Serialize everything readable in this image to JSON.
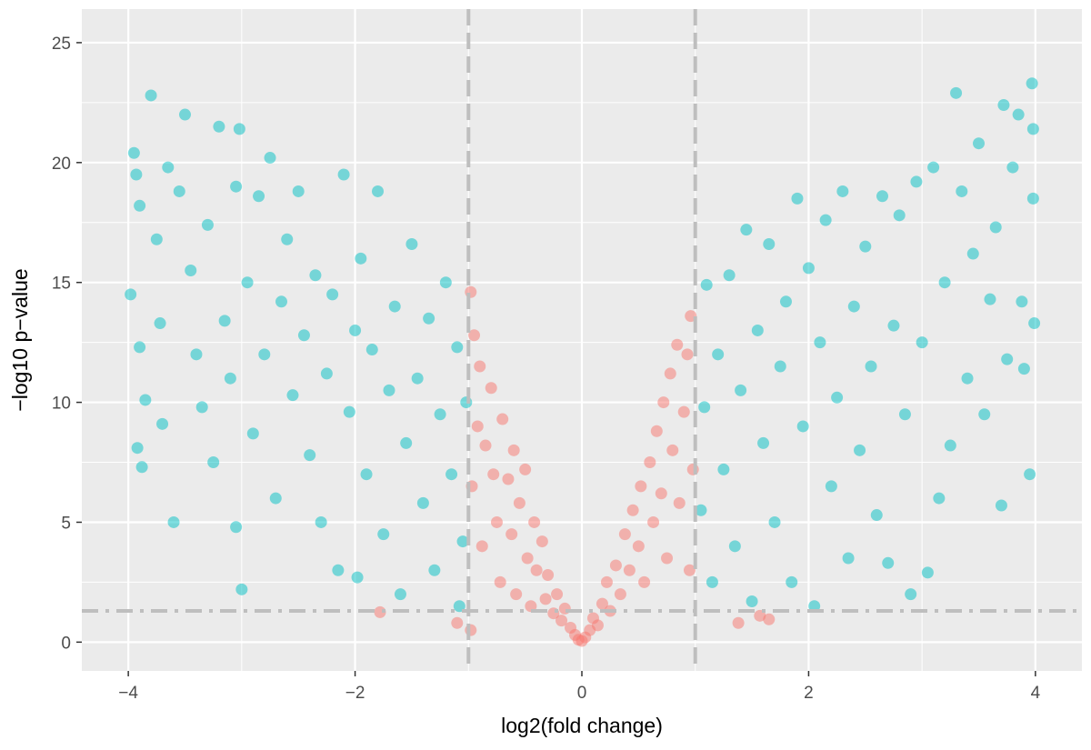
{
  "chart_data": {
    "type": "scatter",
    "title": "",
    "xlabel": "log2(fold change)",
    "ylabel": "−log10 p−value",
    "xlim": [
      -4.41,
      4.41
    ],
    "ylim": [
      -1.2,
      26.4
    ],
    "x_ticks": [
      "−4",
      "−2",
      "0",
      "2",
      "4"
    ],
    "x_tick_values": [
      -4,
      -2,
      0,
      2,
      4
    ],
    "y_ticks": [
      "0",
      "5",
      "10",
      "15",
      "20",
      "25"
    ],
    "y_tick_values": [
      0,
      5,
      10,
      15,
      20,
      25
    ],
    "grid": true,
    "legend": "none",
    "thresholds": {
      "vertical": [
        -1,
        1
      ],
      "horizontal": 1.3
    },
    "colors": {
      "significant": "#00BFC4",
      "not_significant": "#F8766D",
      "panel": "#EBEBEB",
      "grid": "#FFFFFF",
      "threshold": "#BEBEBE"
    },
    "point_alpha": 0.5,
    "series": [
      {
        "group": "not_significant",
        "color": "#F8766D",
        "points": [
          [
            -0.98,
            14.6
          ],
          [
            -0.95,
            12.8
          ],
          [
            -0.9,
            11.5
          ],
          [
            -0.92,
            9.0
          ],
          [
            -0.97,
            6.5
          ],
          [
            -0.88,
            4.0
          ],
          [
            -0.85,
            8.2
          ],
          [
            -0.8,
            10.6
          ],
          [
            -0.78,
            7.0
          ],
          [
            -0.75,
            5.0
          ],
          [
            -0.72,
            2.5
          ],
          [
            -0.7,
            9.3
          ],
          [
            -0.65,
            6.8
          ],
          [
            -0.62,
            4.5
          ],
          [
            -0.6,
            8.0
          ],
          [
            -0.58,
            2.0
          ],
          [
            -0.55,
            5.8
          ],
          [
            -0.5,
            7.2
          ],
          [
            -0.48,
            3.5
          ],
          [
            -0.45,
            1.5
          ],
          [
            -0.42,
            5.0
          ],
          [
            -0.4,
            3.0
          ],
          [
            -0.35,
            4.2
          ],
          [
            -0.32,
            1.8
          ],
          [
            -0.3,
            2.8
          ],
          [
            -0.25,
            1.2
          ],
          [
            -0.22,
            2.0
          ],
          [
            -0.18,
            0.9
          ],
          [
            -0.15,
            1.4
          ],
          [
            -0.1,
            0.6
          ],
          [
            -0.06,
            0.3
          ],
          [
            -0.03,
            0.1
          ],
          [
            0.0,
            0.05
          ],
          [
            0.03,
            0.2
          ],
          [
            0.07,
            0.5
          ],
          [
            0.1,
            1.0
          ],
          [
            0.14,
            0.7
          ],
          [
            0.18,
            1.6
          ],
          [
            0.22,
            2.5
          ],
          [
            0.25,
            1.3
          ],
          [
            0.3,
            3.2
          ],
          [
            0.34,
            2.0
          ],
          [
            0.38,
            4.5
          ],
          [
            0.42,
            3.0
          ],
          [
            0.45,
            5.5
          ],
          [
            0.5,
            4.0
          ],
          [
            0.52,
            6.5
          ],
          [
            0.55,
            2.5
          ],
          [
            0.6,
            7.5
          ],
          [
            0.63,
            5.0
          ],
          [
            0.66,
            8.8
          ],
          [
            0.7,
            6.2
          ],
          [
            0.72,
            10.0
          ],
          [
            0.75,
            3.5
          ],
          [
            0.78,
            11.2
          ],
          [
            0.8,
            8.0
          ],
          [
            0.84,
            12.4
          ],
          [
            0.86,
            5.8
          ],
          [
            0.9,
            9.6
          ],
          [
            0.93,
            12.0
          ],
          [
            0.96,
            13.6
          ],
          [
            0.98,
            7.2
          ],
          [
            0.95,
            3.0
          ],
          [
            -1.78,
            1.25
          ],
          [
            -1.1,
            0.8
          ],
          [
            -0.98,
            0.5
          ],
          [
            1.38,
            0.8
          ],
          [
            1.57,
            1.1
          ],
          [
            1.65,
            0.95
          ]
        ]
      },
      {
        "group": "significant",
        "color": "#00BFC4",
        "points": [
          [
            -3.95,
            20.4
          ],
          [
            -3.93,
            19.5
          ],
          [
            -3.9,
            18.2
          ],
          [
            -3.98,
            14.5
          ],
          [
            -3.9,
            12.3
          ],
          [
            -3.92,
            8.1
          ],
          [
            -3.88,
            7.3
          ],
          [
            -3.8,
            22.8
          ],
          [
            -3.75,
            16.8
          ],
          [
            -3.72,
            13.3
          ],
          [
            -3.7,
            9.1
          ],
          [
            -3.85,
            10.1
          ],
          [
            -3.65,
            19.8
          ],
          [
            -3.6,
            5.0
          ],
          [
            -3.55,
            18.8
          ],
          [
            -3.5,
            22.0
          ],
          [
            -3.45,
            15.5
          ],
          [
            -3.4,
            12.0
          ],
          [
            -3.35,
            9.8
          ],
          [
            -3.3,
            17.4
          ],
          [
            -3.25,
            7.5
          ],
          [
            -3.2,
            21.5
          ],
          [
            -3.15,
            13.4
          ],
          [
            -3.1,
            11.0
          ],
          [
            -3.05,
            19.0
          ],
          [
            -3.02,
            21.4
          ],
          [
            -3.0,
            2.2
          ],
          [
            -3.05,
            4.8
          ],
          [
            -2.95,
            15.0
          ],
          [
            -2.9,
            8.7
          ],
          [
            -2.85,
            18.6
          ],
          [
            -2.8,
            12.0
          ],
          [
            -2.75,
            20.2
          ],
          [
            -2.7,
            6.0
          ],
          [
            -2.65,
            14.2
          ],
          [
            -2.6,
            16.8
          ],
          [
            -2.55,
            10.3
          ],
          [
            -2.5,
            18.8
          ],
          [
            -2.45,
            12.8
          ],
          [
            -2.4,
            7.8
          ],
          [
            -2.35,
            15.3
          ],
          [
            -2.3,
            5.0
          ],
          [
            -2.25,
            11.2
          ],
          [
            -2.2,
            14.5
          ],
          [
            -2.15,
            3.0
          ],
          [
            -2.1,
            19.5
          ],
          [
            -2.05,
            9.6
          ],
          [
            -2.0,
            13.0
          ],
          [
            -1.98,
            2.7
          ],
          [
            -1.95,
            16.0
          ],
          [
            -1.9,
            7.0
          ],
          [
            -1.85,
            12.2
          ],
          [
            -1.8,
            18.8
          ],
          [
            -1.75,
            4.5
          ],
          [
            -1.7,
            10.5
          ],
          [
            -1.65,
            14.0
          ],
          [
            -1.6,
            2.0
          ],
          [
            -1.55,
            8.3
          ],
          [
            -1.5,
            16.6
          ],
          [
            -1.45,
            11.0
          ],
          [
            -1.4,
            5.8
          ],
          [
            -1.35,
            13.5
          ],
          [
            -1.3,
            3.0
          ],
          [
            -1.25,
            9.5
          ],
          [
            -1.2,
            15.0
          ],
          [
            -1.15,
            7.0
          ],
          [
            -1.1,
            12.3
          ],
          [
            -1.05,
            4.2
          ],
          [
            -1.02,
            10.0
          ],
          [
            -1.08,
            1.5
          ],
          [
            1.05,
            5.5
          ],
          [
            1.08,
            9.8
          ],
          [
            1.1,
            14.9
          ],
          [
            1.15,
            2.5
          ],
          [
            1.2,
            12.0
          ],
          [
            1.25,
            7.2
          ],
          [
            1.3,
            15.3
          ],
          [
            1.35,
            4.0
          ],
          [
            1.4,
            10.5
          ],
          [
            1.45,
            17.2
          ],
          [
            1.5,
            1.7
          ],
          [
            1.55,
            13.0
          ],
          [
            1.6,
            8.3
          ],
          [
            1.65,
            16.6
          ],
          [
            1.7,
            5.0
          ],
          [
            1.75,
            11.5
          ],
          [
            1.8,
            14.2
          ],
          [
            1.85,
            2.5
          ],
          [
            1.9,
            18.5
          ],
          [
            1.95,
            9.0
          ],
          [
            2.0,
            15.6
          ],
          [
            2.05,
            1.5
          ],
          [
            2.1,
            12.5
          ],
          [
            2.15,
            17.6
          ],
          [
            2.2,
            6.5
          ],
          [
            2.25,
            10.2
          ],
          [
            2.3,
            18.8
          ],
          [
            2.35,
            3.5
          ],
          [
            2.4,
            14.0
          ],
          [
            2.45,
            8.0
          ],
          [
            2.5,
            16.5
          ],
          [
            2.55,
            11.5
          ],
          [
            2.6,
            5.3
          ],
          [
            2.65,
            18.6
          ],
          [
            2.7,
            3.3
          ],
          [
            2.75,
            13.2
          ],
          [
            2.8,
            17.8
          ],
          [
            2.85,
            9.5
          ],
          [
            2.9,
            2.0
          ],
          [
            2.95,
            19.2
          ],
          [
            3.0,
            12.5
          ],
          [
            3.05,
            2.9
          ],
          [
            3.1,
            19.8
          ],
          [
            3.15,
            6.0
          ],
          [
            3.2,
            15.0
          ],
          [
            3.25,
            8.2
          ],
          [
            3.3,
            22.9
          ],
          [
            3.35,
            18.8
          ],
          [
            3.4,
            11.0
          ],
          [
            3.45,
            16.2
          ],
          [
            3.5,
            20.8
          ],
          [
            3.55,
            9.5
          ],
          [
            3.6,
            14.3
          ],
          [
            3.65,
            17.3
          ],
          [
            3.7,
            5.7
          ],
          [
            3.72,
            22.4
          ],
          [
            3.75,
            11.8
          ],
          [
            3.8,
            19.8
          ],
          [
            3.85,
            22.0
          ],
          [
            3.88,
            14.2
          ],
          [
            3.9,
            11.4
          ],
          [
            3.95,
            7.0
          ],
          [
            3.97,
            23.3
          ],
          [
            3.98,
            18.5
          ],
          [
            3.99,
            13.3
          ],
          [
            3.98,
            21.4
          ]
        ]
      }
    ]
  }
}
